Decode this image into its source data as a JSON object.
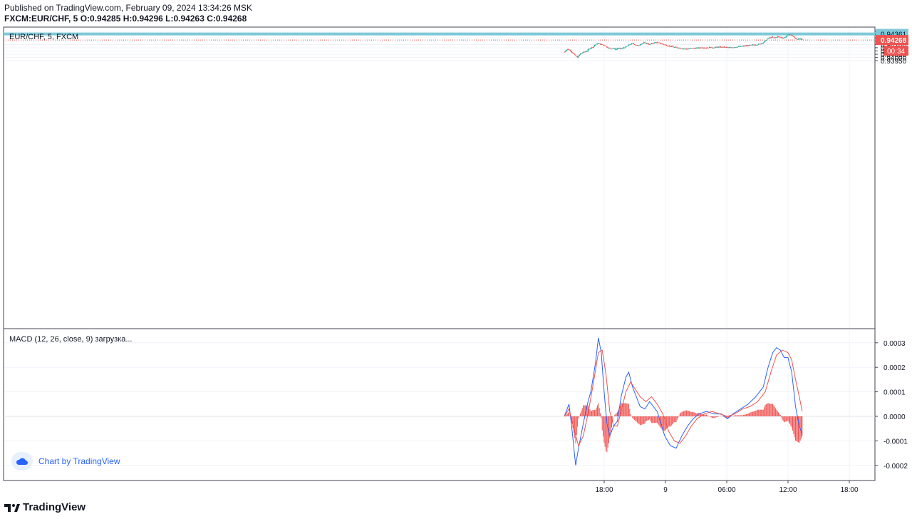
{
  "header": {
    "published": "Published on TradingView.com, February 09, 2024 13:34:26 MSK",
    "symbol": "FXCM:EUR/CHF, 5",
    "o_label": "O:",
    "o": "0.94285",
    "h_label": "H:",
    "h": "0.94296",
    "l_label": "L:",
    "l": "0.94263",
    "c_label": "C:",
    "c": "0.94268"
  },
  "price_pane": {
    "legend": "EUR/CHF, 5, FXCM",
    "horizontal_line_label": "0.94361",
    "last_price_label": "0.94268",
    "countdown_label": "00:34",
    "colors": {
      "up": "#26a69a",
      "down": "#ef5350",
      "hline": "#7ec8d8",
      "last": "#ef5350"
    }
  },
  "macd_pane": {
    "legend": "MACD (12, 26, close, 9) загрузка..."
  },
  "watermark": "Chart by TradingView",
  "footer_logo": "TradingView",
  "chart_data": [
    {
      "type": "candlestick",
      "title": "EUR/CHF, 5, FXCM",
      "ylim": [
        0.9395,
        0.9444
      ],
      "y_ticks": [
        "0.94400",
        "0.94350",
        "0.94300",
        "0.94250",
        "0.94200",
        "0.94150",
        "0.94100",
        "0.94050",
        "0.94000",
        "0.93950"
      ],
      "x_ticks": [
        "18:00",
        "9",
        "06:00",
        "12:00",
        "18:00"
      ],
      "horizontal_line": 0.94361,
      "last_price": 0.94268,
      "close_path": [
        [
          0,
          0.94085
        ],
        [
          3,
          0.9413
        ],
        [
          6,
          0.9411
        ],
        [
          9,
          0.9407
        ],
        [
          12,
          0.9402
        ],
        [
          14,
          0.94005
        ],
        [
          17,
          0.9406
        ],
        [
          20,
          0.9408
        ],
        [
          24,
          0.941
        ],
        [
          27,
          0.9414
        ],
        [
          30,
          0.9416
        ],
        [
          33,
          0.942
        ],
        [
          36,
          0.94215
        ],
        [
          39,
          0.942
        ],
        [
          42,
          0.9419
        ],
        [
          45,
          0.9416
        ],
        [
          48,
          0.94135
        ],
        [
          51,
          0.9414
        ],
        [
          54,
          0.94125
        ],
        [
          57,
          0.9414
        ],
        [
          60,
          0.94135
        ],
        [
          63,
          0.9415
        ],
        [
          66,
          0.9417
        ],
        [
          69,
          0.942
        ],
        [
          72,
          0.94215
        ],
        [
          75,
          0.94195
        ],
        [
          78,
          0.9418
        ],
        [
          81,
          0.9421
        ],
        [
          84,
          0.94225
        ],
        [
          87,
          0.94215
        ],
        [
          90,
          0.942
        ],
        [
          93,
          0.9422
        ],
        [
          96,
          0.9423
        ],
        [
          99,
          0.94225
        ],
        [
          102,
          0.94215
        ],
        [
          105,
          0.942
        ],
        [
          108,
          0.94185
        ],
        [
          111,
          0.94175
        ],
        [
          114,
          0.94165
        ],
        [
          117,
          0.94155
        ],
        [
          120,
          0.9415
        ],
        [
          123,
          0.9414
        ],
        [
          126,
          0.94135
        ],
        [
          129,
          0.9413
        ],
        [
          132,
          0.94135
        ],
        [
          135,
          0.9414
        ],
        [
          138,
          0.94142
        ],
        [
          141,
          0.94145
        ],
        [
          144,
          0.9415
        ],
        [
          147,
          0.94152
        ],
        [
          150,
          0.94148
        ],
        [
          153,
          0.94155
        ],
        [
          156,
          0.9415
        ],
        [
          159,
          0.94155
        ],
        [
          162,
          0.9416
        ],
        [
          165,
          0.94158
        ],
        [
          168,
          0.9416
        ],
        [
          171,
          0.94155
        ],
        [
          174,
          0.9415
        ],
        [
          177,
          0.94155
        ],
        [
          180,
          0.9416
        ],
        [
          183,
          0.94165
        ],
        [
          186,
          0.9417
        ],
        [
          189,
          0.94175
        ],
        [
          192,
          0.9418
        ],
        [
          195,
          0.94185
        ],
        [
          198,
          0.9419
        ],
        [
          201,
          0.94195
        ],
        [
          204,
          0.942
        ],
        [
          207,
          0.9421
        ],
        [
          210,
          0.9423
        ],
        [
          213,
          0.9427
        ],
        [
          216,
          0.943
        ],
        [
          219,
          0.9431
        ],
        [
          222,
          0.943
        ],
        [
          225,
          0.9432
        ],
        [
          228,
          0.9431
        ],
        [
          231,
          0.943
        ],
        [
          234,
          0.9432
        ],
        [
          237,
          0.94355
        ],
        [
          240,
          0.9434
        ],
        [
          243,
          0.943
        ],
        [
          246,
          0.9428
        ],
        [
          249,
          0.94285
        ],
        [
          251,
          0.94268
        ]
      ]
    },
    {
      "type": "line",
      "title": "MACD (12, 26, close, 9)",
      "ylim": [
        -0.00025,
        0.00032
      ],
      "y_ticks": [
        "0.0003",
        "0.0002",
        "0.0001",
        "0.0000",
        "-0.0001",
        "-0.0002"
      ],
      "series": [
        {
          "color": "#2962ff",
          "values": [
            [
              0,
              0.0
            ],
            [
              5,
              5e-05
            ],
            [
              8,
              -5e-05
            ],
            [
              12,
              -0.0002
            ],
            [
              15,
              -0.00013
            ],
            [
              20,
              -3e-05
            ],
            [
              25,
              6e-05
            ],
            [
              28,
              0.0001
            ],
            [
              33,
              0.00022
            ],
            [
              36,
              0.00032
            ],
            [
              39,
              0.00026
            ],
            [
              42,
              0.0001
            ],
            [
              45,
              -3e-05
            ],
            [
              48,
              -8e-05
            ],
            [
              52,
              -4e-05
            ],
            [
              56,
              -2e-05
            ],
            [
              60,
              8e-05
            ],
            [
              65,
              0.00016
            ],
            [
              68,
              0.00018
            ],
            [
              72,
              0.00012
            ],
            [
              76,
              8e-05
            ],
            [
              80,
              4e-05
            ],
            [
              85,
              3e-05
            ],
            [
              90,
              6e-05
            ],
            [
              94,
              4e-05
            ],
            [
              98,
              2e-05
            ],
            [
              102,
              -3e-05
            ],
            [
              106,
              -8e-05
            ],
            [
              112,
              -0.00012
            ],
            [
              118,
              -0.00013
            ],
            [
              124,
              -8e-05
            ],
            [
              130,
              -4e-05
            ],
            [
              136,
              -1e-05
            ],
            [
              142,
              1e-05
            ],
            [
              150,
              2e-05
            ],
            [
              158,
              1e-05
            ],
            [
              166,
              1e-05
            ],
            [
              172,
              -1e-05
            ],
            [
              178,
              1e-05
            ],
            [
              186,
              3e-05
            ],
            [
              194,
              5e-05
            ],
            [
              202,
              8e-05
            ],
            [
              210,
              0.00012
            ],
            [
              215,
              0.0002
            ],
            [
              220,
              0.00026
            ],
            [
              224,
              0.00028
            ],
            [
              228,
              0.00027
            ],
            [
              232,
              0.00024
            ],
            [
              236,
              0.00024
            ],
            [
              240,
              0.00018
            ],
            [
              244,
              4e-05
            ],
            [
              248,
              -4e-05
            ],
            [
              251,
              -7e-05
            ]
          ]
        },
        {
          "color": "#ef5350",
          "values": [
            [
              0,
              0.0
            ],
            [
              5,
              3e-05
            ],
            [
              10,
              -5e-05
            ],
            [
              15,
              -0.00012
            ],
            [
              20,
              -8e-05
            ],
            [
              25,
              1e-05
            ],
            [
              30,
              0.00012
            ],
            [
              36,
              0.00026
            ],
            [
              40,
              0.00027
            ],
            [
              44,
              0.00017
            ],
            [
              48,
              2e-05
            ],
            [
              52,
              -4e-05
            ],
            [
              56,
              -4e-05
            ],
            [
              60,
              2e-05
            ],
            [
              65,
              0.0001
            ],
            [
              70,
              0.00014
            ],
            [
              75,
              0.00011
            ],
            [
              80,
              8e-05
            ],
            [
              86,
              6e-05
            ],
            [
              92,
              8e-05
            ],
            [
              98,
              5e-05
            ],
            [
              104,
              1e-05
            ],
            [
              110,
              -6e-05
            ],
            [
              116,
              -0.0001
            ],
            [
              122,
              -0.00011
            ],
            [
              128,
              -8e-05
            ],
            [
              134,
              -4e-05
            ],
            [
              140,
              -1e-05
            ],
            [
              148,
              1e-05
            ],
            [
              156,
              2e-05
            ],
            [
              164,
              1e-05
            ],
            [
              172,
              0.0
            ],
            [
              180,
              1e-05
            ],
            [
              188,
              3e-05
            ],
            [
              196,
              4e-05
            ],
            [
              204,
              6e-05
            ],
            [
              212,
              0.0001
            ],
            [
              218,
              0.00018
            ],
            [
              224,
              0.00025
            ],
            [
              230,
              0.00027
            ],
            [
              236,
              0.00026
            ],
            [
              240,
              0.00023
            ],
            [
              244,
              0.00015
            ],
            [
              248,
              8e-05
            ],
            [
              251,
              2e-05
            ]
          ]
        }
      ]
    }
  ]
}
